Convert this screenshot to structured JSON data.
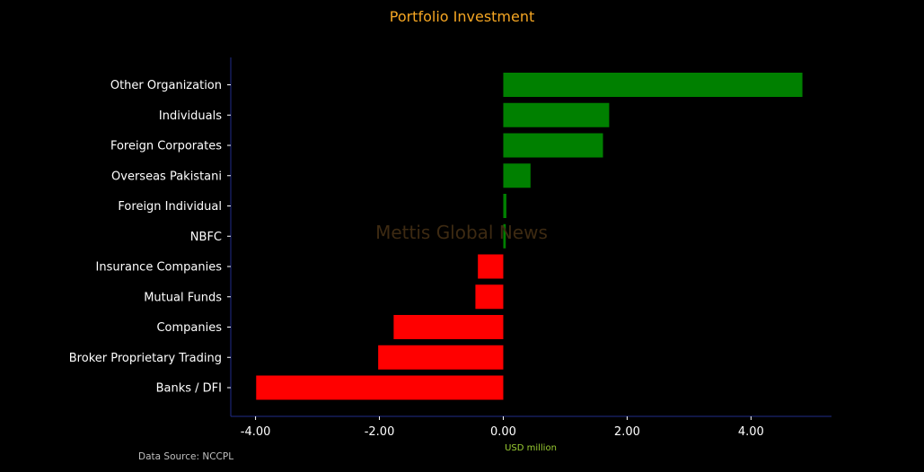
{
  "chart_data": {
    "type": "bar",
    "orientation": "horizontal",
    "title": "Portfolio Investment",
    "xlabel": "USD million",
    "ylabel": "",
    "xlim": [
      -4.4,
      5.3
    ],
    "xticks": [
      -4,
      -2,
      0,
      2,
      4
    ],
    "xtick_labels": [
      "-4.00",
      "-2.00",
      "0.00",
      "2.00",
      "4.00"
    ],
    "categories": [
      "Other Organization",
      "Individuals",
      "Foreign Corporates ",
      "Overseas Pakistani",
      "Foreign Individual",
      "NBFC",
      "Insurance Companies",
      "Mutual Funds",
      "Companies",
      "Broker Proprietary Trading",
      "Banks / DFI"
    ],
    "values": [
      4.83,
      1.71,
      1.61,
      0.44,
      0.05,
      0.04,
      -0.41,
      -0.45,
      -1.77,
      -2.02,
      -3.99
    ],
    "grid": false,
    "legend": "none",
    "watermark": "Mettis Global News",
    "source_note": "Data Source: NCCPL",
    "colors": {
      "positive": "#008000",
      "negative": "#ff0000",
      "title": "#f5a623",
      "xlabel": "#9acd32",
      "axis": "#1f2b8a",
      "tick_text": "#ffffff",
      "source": "#bfbfbf",
      "watermark": "#3d2a12"
    }
  }
}
